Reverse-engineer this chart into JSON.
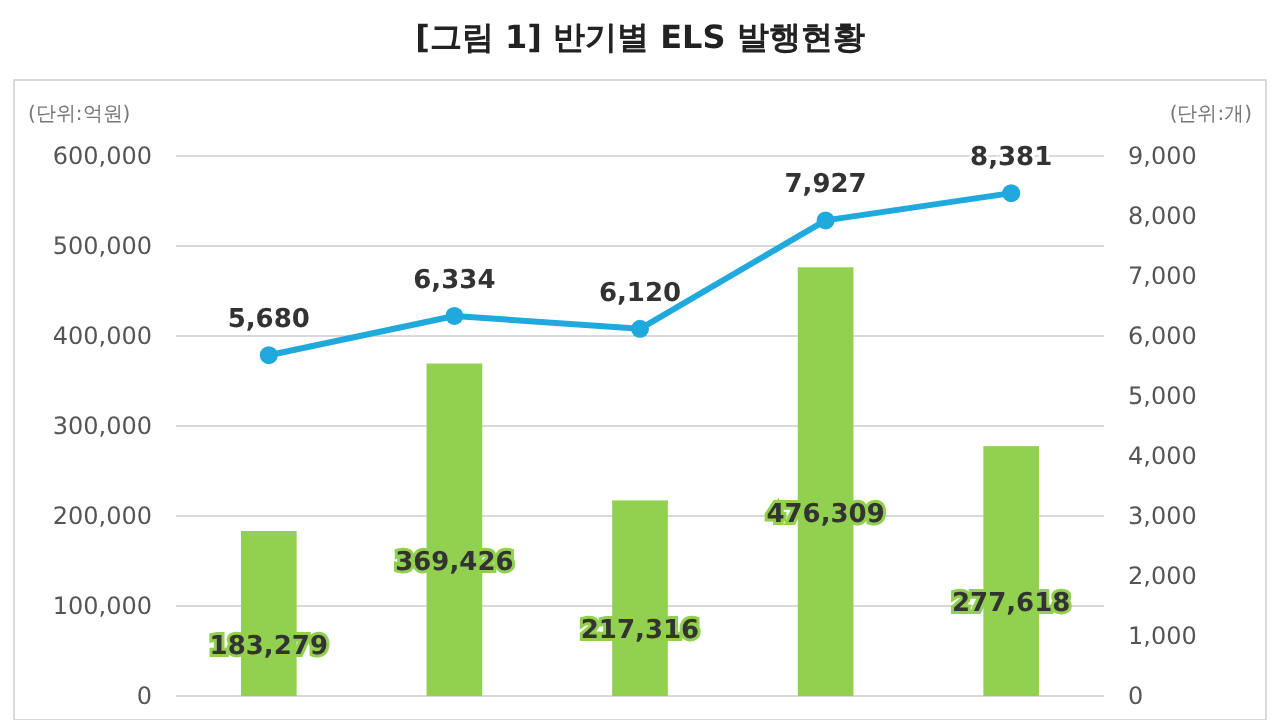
{
  "chart_data": {
    "type": "bar",
    "title": "[그림 1] 반기별 ELS 발행현황",
    "ylabel": "(단위:억원)",
    "y2label": "(단위:개)",
    "categories": [
      null,
      null,
      null,
      null,
      null
    ],
    "series": [
      {
        "color": "#92d050",
        "values": [
          183279,
          369426,
          217316,
          476309,
          277618
        ],
        "value_labels": [
          "183,279",
          "369,426",
          "217,316",
          "476,309",
          "277,618"
        ]
      },
      {
        "type": "line",
        "axis": "y2",
        "color": "#1fa9dc",
        "marker": "circle",
        "values": [
          5680,
          6334,
          6120,
          7927,
          8381
        ],
        "value_labels": [
          "5,680",
          "6,334",
          "6,120",
          "7,927",
          "8,381"
        ]
      }
    ],
    "ylim": [
      0,
      600000
    ],
    "yticks": [
      {
        "value": 0,
        "label": "0"
      },
      {
        "value": 100000,
        "label": "100,000"
      },
      {
        "value": 200000,
        "label": "200,000"
      },
      {
        "value": 300000,
        "label": "300,000"
      },
      {
        "value": 400000,
        "label": "400,000"
      },
      {
        "value": 500000,
        "label": "500,000"
      },
      {
        "value": 600000,
        "label": "600,000"
      }
    ],
    "y2lim": [
      0,
      9000
    ],
    "y2ticks": [
      {
        "value": 0,
        "label": "0"
      },
      {
        "value": 1000,
        "label": "1,000"
      },
      {
        "value": 2000,
        "label": "2,000"
      },
      {
        "value": 3000,
        "label": "3,000"
      },
      {
        "value": 4000,
        "label": "4,000"
      },
      {
        "value": 5000,
        "label": "5,000"
      },
      {
        "value": 6000,
        "label": "6,000"
      },
      {
        "value": 7000,
        "label": "7,000"
      },
      {
        "value": 8000,
        "label": "8,000"
      },
      {
        "value": 9000,
        "label": "9,000"
      }
    ],
    "grid": "y"
  }
}
